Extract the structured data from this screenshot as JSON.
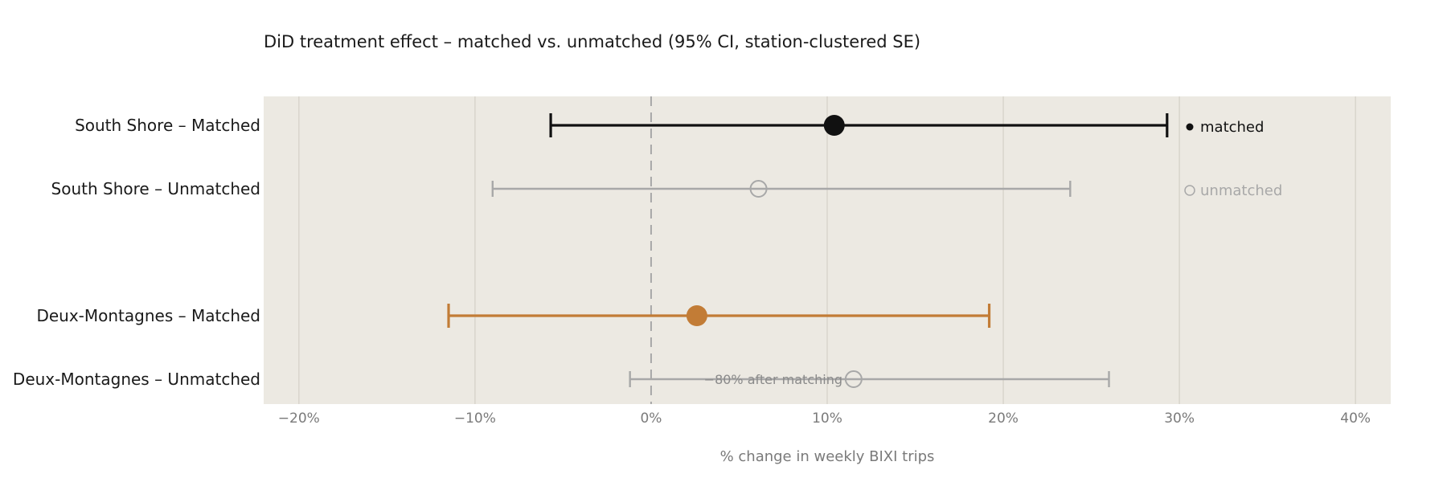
{
  "chart_data": {
    "type": "scatter",
    "subtype": "forest-plot",
    "title": "DiD treatment effect – matched vs. unmatched (95% CI, station-clustered SE)",
    "xlabel": "% change in weekly BIXI trips",
    "ylabel": "",
    "xlim": [
      -22,
      42
    ],
    "xticks": [
      -20,
      -10,
      0,
      10,
      20,
      30,
      40
    ],
    "xtick_labels": [
      "−20%",
      "−10%",
      "0%",
      "10%",
      "20%",
      "30%",
      "40%"
    ],
    "grid": "vertical",
    "reference_line": 0,
    "rows": [
      {
        "label": "South Shore – Matched",
        "estimate": 10.4,
        "ci_low": -5.7,
        "ci_high": 29.3,
        "style": "matched",
        "color": "#111111"
      },
      {
        "label": "South Shore – Unmatched",
        "estimate": 6.1,
        "ci_low": -9.0,
        "ci_high": 23.8,
        "style": "unmatched",
        "color": "#a8a8a8"
      },
      {
        "label": "Deux-Montagnes – Matched",
        "estimate": 2.6,
        "ci_low": -11.5,
        "ci_high": 19.2,
        "style": "matched",
        "color": "#c27c36"
      },
      {
        "label": "Deux-Montagnes – Unmatched",
        "estimate": 11.5,
        "ci_low": -1.2,
        "ci_high": 26.0,
        "style": "unmatched",
        "color": "#a8a8a8"
      }
    ],
    "legend": {
      "placement": "right",
      "items": [
        {
          "label": "matched",
          "marker": "filled-circle",
          "color": "#111111"
        },
        {
          "label": "unmatched",
          "marker": "open-circle",
          "color": "#a8a8a8"
        }
      ]
    },
    "annotation": "−80% after matching",
    "colors": {
      "panel": "#ece9e2",
      "grid": "#d9d5cc",
      "reference": "#a8a8a8"
    }
  }
}
